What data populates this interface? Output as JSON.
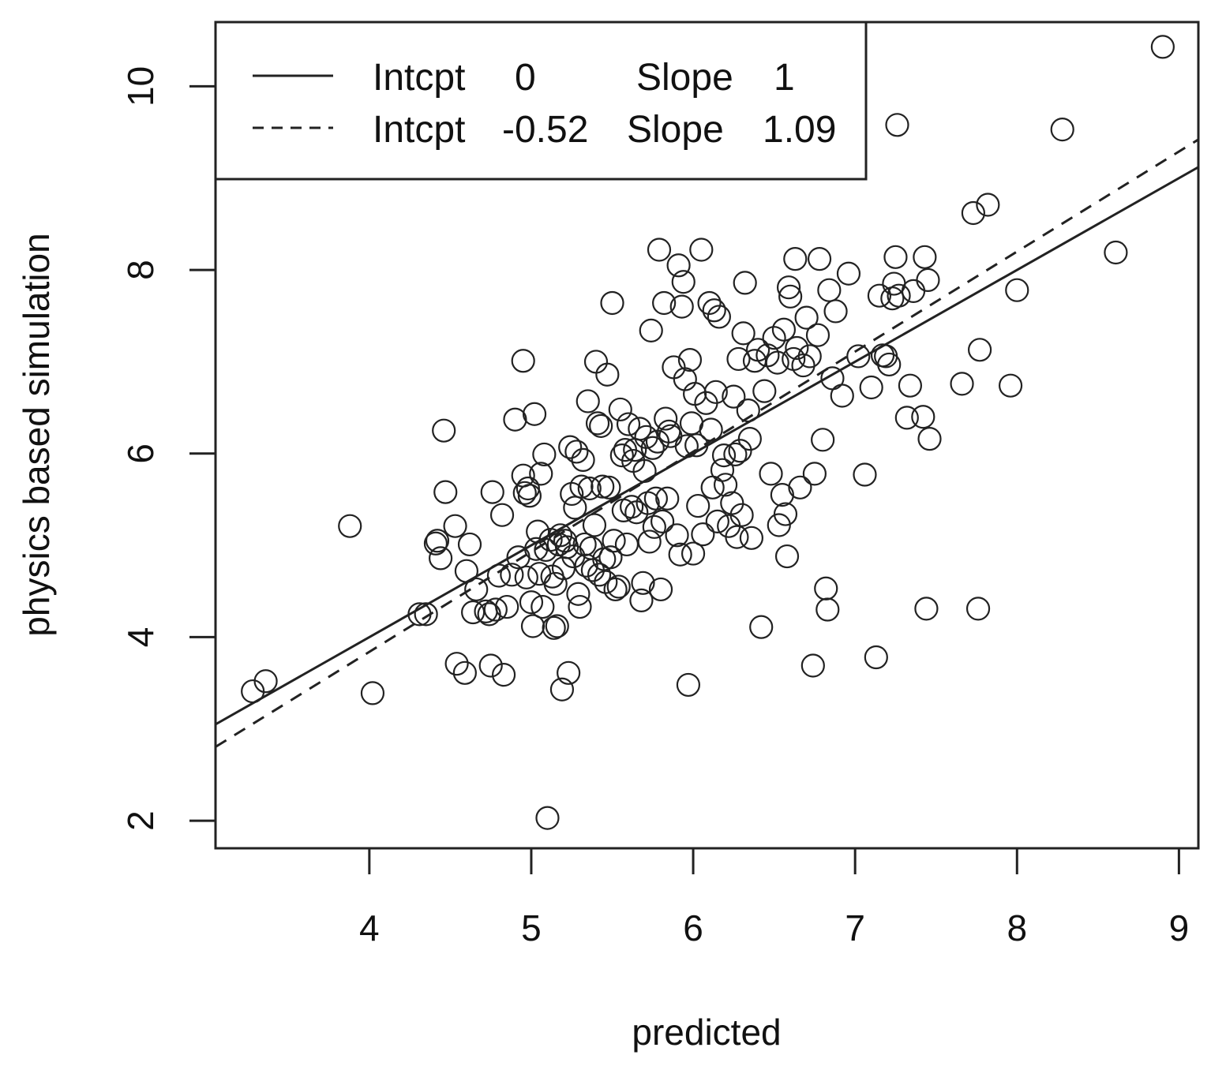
{
  "chart_data": {
    "type": "scatter",
    "xlabel": "predicted",
    "ylabel": "physics based simulation",
    "xlim": [
      3.05,
      9.12
    ],
    "ylim": [
      1.7,
      10.7
    ],
    "xticks": [
      "4",
      "5",
      "6",
      "7",
      "8",
      "9"
    ],
    "yticks": [
      "2",
      "4",
      "6",
      "8",
      "10"
    ],
    "lines": [
      {
        "style": "solid",
        "intercept": 0,
        "slope": 1
      },
      {
        "style": "dashed",
        "intercept": -0.52,
        "slope": 1.09
      }
    ],
    "legend": {
      "position": "top-left",
      "entries": [
        {
          "style": "solid",
          "intcpt_label": "Intcpt",
          "intcpt_value": "0",
          "slope_label": "Slope",
          "slope_value": "1"
        },
        {
          "style": "dashed",
          "intcpt_label": "Intcpt",
          "intcpt_value": "-0.52",
          "slope_label": "Slope",
          "slope_value": "1.09"
        }
      ]
    },
    "points": [
      [
        3.28,
        3.41
      ],
      [
        3.36,
        3.52
      ],
      [
        3.88,
        5.21
      ],
      [
        4.02,
        3.39
      ],
      [
        4.31,
        4.25
      ],
      [
        4.35,
        4.25
      ],
      [
        4.41,
        5.02
      ],
      [
        4.42,
        5.05
      ],
      [
        4.44,
        4.86
      ],
      [
        4.46,
        6.25
      ],
      [
        4.47,
        5.58
      ],
      [
        4.53,
        5.21
      ],
      [
        4.54,
        3.71
      ],
      [
        4.59,
        3.61
      ],
      [
        4.6,
        4.72
      ],
      [
        4.62,
        5.01
      ],
      [
        4.64,
        4.27
      ],
      [
        4.66,
        4.52
      ],
      [
        4.72,
        4.28
      ],
      [
        4.74,
        4.25
      ],
      [
        4.75,
        3.69
      ],
      [
        4.76,
        5.58
      ],
      [
        4.78,
        4.3
      ],
      [
        4.8,
        4.67
      ],
      [
        4.82,
        5.33
      ],
      [
        4.83,
        3.59
      ],
      [
        4.85,
        4.33
      ],
      [
        4.88,
        4.68
      ],
      [
        4.9,
        6.37
      ],
      [
        4.92,
        4.87
      ],
      [
        4.95,
        7.01
      ],
      [
        4.95,
        5.76
      ],
      [
        4.96,
        5.57
      ],
      [
        4.97,
        4.65
      ],
      [
        4.98,
        5.62
      ],
      [
        4.99,
        5.54
      ],
      [
        5.0,
        4.38
      ],
      [
        5.01,
        4.12
      ],
      [
        5.02,
        6.43
      ],
      [
        5.03,
        4.96
      ],
      [
        5.04,
        5.15
      ],
      [
        5.05,
        4.69
      ],
      [
        5.06,
        5.78
      ],
      [
        5.07,
        4.33
      ],
      [
        5.08,
        5.99
      ],
      [
        5.09,
        4.95
      ],
      [
        5.1,
        2.03
      ],
      [
        5.12,
        5.06
      ],
      [
        5.13,
        4.66
      ],
      [
        5.14,
        4.1
      ],
      [
        5.15,
        4.58
      ],
      [
        5.16,
        4.12
      ],
      [
        5.17,
        5.01
      ],
      [
        5.18,
        5.11
      ],
      [
        5.19,
        3.43
      ],
      [
        5.2,
        4.75
      ],
      [
        5.21,
        5.05
      ],
      [
        5.22,
        4.98
      ],
      [
        5.23,
        3.61
      ],
      [
        5.24,
        6.07
      ],
      [
        5.25,
        5.56
      ],
      [
        5.26,
        4.88
      ],
      [
        5.27,
        5.41
      ],
      [
        5.28,
        6.02
      ],
      [
        5.29,
        4.47
      ],
      [
        5.3,
        4.33
      ],
      [
        5.31,
        5.64
      ],
      [
        5.32,
        5.93
      ],
      [
        5.33,
        5.01
      ],
      [
        5.34,
        4.78
      ],
      [
        5.35,
        6.57
      ],
      [
        5.36,
        5.62
      ],
      [
        5.37,
        4.97
      ],
      [
        5.38,
        4.73
      ],
      [
        5.39,
        5.22
      ],
      [
        5.4,
        7.0
      ],
      [
        5.41,
        6.33
      ],
      [
        5.42,
        4.68
      ],
      [
        5.43,
        6.3
      ],
      [
        5.44,
        5.64
      ],
      [
        5.45,
        4.85
      ],
      [
        5.46,
        4.6
      ],
      [
        5.47,
        6.86
      ],
      [
        5.48,
        5.63
      ],
      [
        5.49,
        4.87
      ],
      [
        5.5,
        7.64
      ],
      [
        5.51,
        5.05
      ],
      [
        5.52,
        4.52
      ],
      [
        5.54,
        4.55
      ],
      [
        5.55,
        6.48
      ],
      [
        5.56,
        5.98
      ],
      [
        5.57,
        5.38
      ],
      [
        5.58,
        6.04
      ],
      [
        5.59,
        5.01
      ],
      [
        5.6,
        6.32
      ],
      [
        5.62,
        5.42
      ],
      [
        5.63,
        5.92
      ],
      [
        5.64,
        6.04
      ],
      [
        5.65,
        5.36
      ],
      [
        5.67,
        6.27
      ],
      [
        5.68,
        4.4
      ],
      [
        5.69,
        4.59
      ],
      [
        5.7,
        5.81
      ],
      [
        5.71,
        6.18
      ],
      [
        5.72,
        5.46
      ],
      [
        5.73,
        5.04
      ],
      [
        5.74,
        7.34
      ],
      [
        5.75,
        6.06
      ],
      [
        5.76,
        5.2
      ],
      [
        5.77,
        5.51
      ],
      [
        5.78,
        6.13
      ],
      [
        5.79,
        8.22
      ],
      [
        5.8,
        4.52
      ],
      [
        5.81,
        5.26
      ],
      [
        5.82,
        7.64
      ],
      [
        5.83,
        6.38
      ],
      [
        5.84,
        5.51
      ],
      [
        5.85,
        6.24
      ],
      [
        5.86,
        6.19
      ],
      [
        5.88,
        6.94
      ],
      [
        5.9,
        5.11
      ],
      [
        5.91,
        8.05
      ],
      [
        5.92,
        4.9
      ],
      [
        5.93,
        7.6
      ],
      [
        5.94,
        7.87
      ],
      [
        5.95,
        6.81
      ],
      [
        5.96,
        6.08
      ],
      [
        5.97,
        3.48
      ],
      [
        5.98,
        7.02
      ],
      [
        5.99,
        6.33
      ],
      [
        6.0,
        4.91
      ],
      [
        6.01,
        6.65
      ],
      [
        6.02,
        6.09
      ],
      [
        6.03,
        5.43
      ],
      [
        6.05,
        8.22
      ],
      [
        6.06,
        5.12
      ],
      [
        6.08,
        6.55
      ],
      [
        6.1,
        7.64
      ],
      [
        6.11,
        6.26
      ],
      [
        6.12,
        5.63
      ],
      [
        6.13,
        7.56
      ],
      [
        6.14,
        6.67
      ],
      [
        6.15,
        5.26
      ],
      [
        6.16,
        7.49
      ],
      [
        6.18,
        5.82
      ],
      [
        6.19,
        5.98
      ],
      [
        6.2,
        5.66
      ],
      [
        6.22,
        5.21
      ],
      [
        6.24,
        5.46
      ],
      [
        6.25,
        6.62
      ],
      [
        6.26,
        5.99
      ],
      [
        6.27,
        5.09
      ],
      [
        6.28,
        7.03
      ],
      [
        6.29,
        6.03
      ],
      [
        6.3,
        5.33
      ],
      [
        6.31,
        7.31
      ],
      [
        6.32,
        7.86
      ],
      [
        6.34,
        6.47
      ],
      [
        6.35,
        6.16
      ],
      [
        6.36,
        5.08
      ],
      [
        6.38,
        7.01
      ],
      [
        6.4,
        7.13
      ],
      [
        6.42,
        4.11
      ],
      [
        6.44,
        6.68
      ],
      [
        6.46,
        7.07
      ],
      [
        6.48,
        5.78
      ],
      [
        6.5,
        7.26
      ],
      [
        6.52,
        6.99
      ],
      [
        6.53,
        5.22
      ],
      [
        6.55,
        5.55
      ],
      [
        6.56,
        7.35
      ],
      [
        6.57,
        5.34
      ],
      [
        6.58,
        4.88
      ],
      [
        6.59,
        7.81
      ],
      [
        6.6,
        7.71
      ],
      [
        6.62,
        7.03
      ],
      [
        6.63,
        8.12
      ],
      [
        6.64,
        7.15
      ],
      [
        6.66,
        5.63
      ],
      [
        6.68,
        6.96
      ],
      [
        6.7,
        7.48
      ],
      [
        6.72,
        7.06
      ],
      [
        6.74,
        3.69
      ],
      [
        6.75,
        5.78
      ],
      [
        6.77,
        7.29
      ],
      [
        6.78,
        8.12
      ],
      [
        6.8,
        6.15
      ],
      [
        6.82,
        4.53
      ],
      [
        6.83,
        4.3
      ],
      [
        6.84,
        7.78
      ],
      [
        6.86,
        6.82
      ],
      [
        6.88,
        7.55
      ],
      [
        6.92,
        6.63
      ],
      [
        6.96,
        7.96
      ],
      [
        7.02,
        7.06
      ],
      [
        7.06,
        5.77
      ],
      [
        7.1,
        6.72
      ],
      [
        7.13,
        3.78
      ],
      [
        7.15,
        7.72
      ],
      [
        7.17,
        7.07
      ],
      [
        7.19,
        7.06
      ],
      [
        7.21,
        6.97
      ],
      [
        7.23,
        7.69
      ],
      [
        7.24,
        7.85
      ],
      [
        7.25,
        8.14
      ],
      [
        7.26,
        9.58
      ],
      [
        7.27,
        7.72
      ],
      [
        7.32,
        6.39
      ],
      [
        7.34,
        6.74
      ],
      [
        7.36,
        7.77
      ],
      [
        7.42,
        6.4
      ],
      [
        7.43,
        8.14
      ],
      [
        7.44,
        4.31
      ],
      [
        7.45,
        7.89
      ],
      [
        7.46,
        6.16
      ],
      [
        7.66,
        6.76
      ],
      [
        7.73,
        8.62
      ],
      [
        7.76,
        4.31
      ],
      [
        7.77,
        7.13
      ],
      [
        7.82,
        8.71
      ],
      [
        7.96,
        6.74
      ],
      [
        8.0,
        7.78
      ],
      [
        8.28,
        9.53
      ],
      [
        8.61,
        8.19
      ],
      [
        8.9,
        10.43
      ]
    ]
  }
}
